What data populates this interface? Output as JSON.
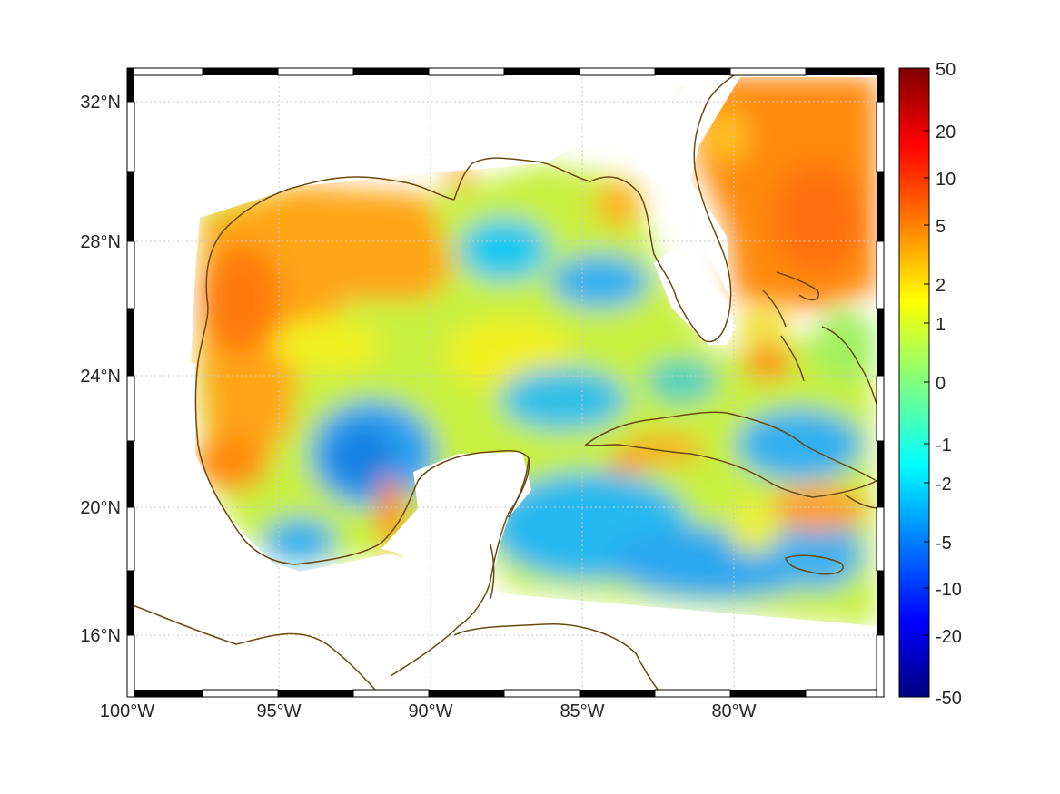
{
  "map": {
    "lon_ticks": [
      "100°W",
      "95°W",
      "90°W",
      "85°W",
      "80°W"
    ],
    "lat_ticks": [
      "32°N",
      "28°N",
      "24°N",
      "20°N",
      "16°N"
    ],
    "lon_range": [
      -100,
      -75
    ],
    "lat_range": [
      14.3,
      33
    ]
  },
  "colorbar": {
    "tick_labels": [
      "50",
      "20",
      "10",
      "5",
      "2",
      "1",
      "0",
      "-1",
      "-2",
      "-5",
      "-10",
      "-20",
      "-50"
    ],
    "colormap": [
      "#7f0000",
      "#ff0000",
      "#ff8000",
      "#ffff00",
      "#80ff80",
      "#00ffff",
      "#0080ff",
      "#0000ff",
      "#00007f"
    ]
  },
  "colors": {
    "coastline": "#6b4a10",
    "grid": "#c8c8c8",
    "frame": "#000000"
  }
}
